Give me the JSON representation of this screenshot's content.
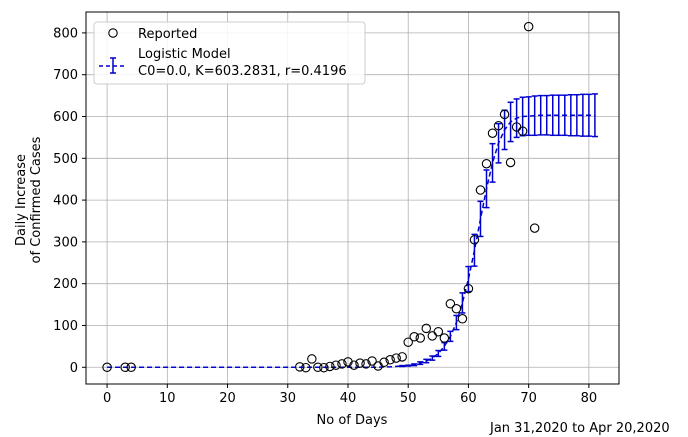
{
  "chart_data": {
    "type": "scatter",
    "xlabel": "No of Days",
    "ylabel_line1": "Daily Increase",
    "ylabel_line2": "of Confirmed Cases",
    "footnote": "Jan 31,2020 to Apr 20,2020",
    "xlim": [
      -3.5,
      85
    ],
    "ylim": [
      -40,
      850
    ],
    "xticks": [
      0,
      10,
      20,
      30,
      40,
      50,
      60,
      70,
      80
    ],
    "yticks": [
      0,
      100,
      200,
      300,
      400,
      500,
      600,
      700,
      800
    ],
    "grid": true,
    "legend_position": "top-left",
    "colors": {
      "reported": "#000000",
      "model": "#0000cc",
      "grid": "#b0b0b0"
    },
    "series": [
      {
        "name": "Reported",
        "style": "open-circle",
        "points": [
          [
            0,
            0
          ],
          [
            3,
            0
          ],
          [
            4,
            0
          ],
          [
            32,
            1
          ],
          [
            33,
            -1
          ],
          [
            34,
            20
          ],
          [
            35,
            0
          ],
          [
            36,
            -1
          ],
          [
            37,
            2
          ],
          [
            38,
            5
          ],
          [
            39,
            8
          ],
          [
            40,
            13
          ],
          [
            41,
            5
          ],
          [
            42,
            10
          ],
          [
            43,
            8
          ],
          [
            44,
            15
          ],
          [
            45,
            3
          ],
          [
            46,
            12
          ],
          [
            47,
            18
          ],
          [
            48,
            22
          ],
          [
            49,
            25
          ],
          [
            50,
            60
          ],
          [
            51,
            73
          ],
          [
            52,
            70
          ],
          [
            53,
            93
          ],
          [
            54,
            75
          ],
          [
            55,
            85
          ],
          [
            56,
            70
          ],
          [
            57,
            152
          ],
          [
            58,
            140
          ],
          [
            59,
            116
          ],
          [
            60,
            188
          ],
          [
            61,
            305
          ],
          [
            62,
            424
          ],
          [
            63,
            487
          ],
          [
            64,
            560
          ],
          [
            65,
            578
          ],
          [
            66,
            605
          ],
          [
            67,
            490
          ],
          [
            68,
            575
          ],
          [
            69,
            565
          ],
          [
            70,
            815
          ],
          [
            71,
            333
          ]
        ]
      },
      {
        "name": "Logistic Model",
        "subtitle": "C0=0.0, K=603.2831, r=0.4196",
        "style": "dashed-errorbar",
        "x": [
          0,
          1,
          2,
          3,
          4,
          5,
          6,
          7,
          8,
          9,
          10,
          11,
          12,
          13,
          14,
          15,
          16,
          17,
          18,
          19,
          20,
          21,
          22,
          23,
          24,
          25,
          26,
          27,
          28,
          29,
          30,
          31,
          32,
          33,
          34,
          35,
          36,
          37,
          38,
          39,
          40,
          41,
          42,
          43,
          44,
          45,
          46,
          47,
          48,
          49,
          50,
          51,
          52,
          53,
          54,
          55,
          56,
          57,
          58,
          59,
          60,
          61,
          62,
          63,
          64,
          65,
          66,
          67,
          68,
          69,
          70,
          71,
          72,
          73,
          74,
          75,
          76,
          77,
          78,
          79,
          80,
          81
        ],
        "y": [
          0,
          0,
          0,
          0,
          0,
          0,
          0,
          0,
          0,
          0,
          0,
          0,
          0,
          0,
          0,
          0,
          0,
          0,
          0,
          0,
          0,
          0,
          0,
          0,
          0,
          0,
          0,
          0,
          0,
          0,
          0,
          0,
          0,
          0,
          0,
          0,
          0,
          0,
          0,
          0,
          0,
          0,
          0,
          0,
          0,
          0,
          1,
          1,
          2,
          3,
          4,
          6,
          10,
          15,
          22,
          33,
          50,
          74,
          107,
          154,
          211,
          280,
          355,
          427,
          489,
          536,
          568,
          587,
          596,
          600,
          601,
          602,
          603,
          603,
          603,
          603,
          603,
          603,
          603,
          603,
          603,
          603
        ],
        "err": [
          0,
          0,
          0,
          0,
          0,
          0,
          0,
          0,
          0,
          0,
          0,
          0,
          0,
          0,
          0,
          0,
          0,
          0,
          0,
          0,
          0,
          0,
          0,
          0,
          0,
          0,
          0,
          0,
          0,
          0,
          0,
          0,
          0,
          0,
          0,
          0,
          0,
          0,
          0,
          0,
          0,
          0,
          0,
          0,
          0,
          0,
          0,
          0,
          0,
          1,
          1,
          2,
          3,
          4,
          5,
          7,
          9,
          12,
          17,
          24,
          30,
          38,
          42,
          45,
          46,
          47,
          47,
          47,
          46,
          46,
          46,
          47,
          47,
          47,
          48,
          48,
          48,
          49,
          49,
          50,
          50,
          51
        ]
      }
    ]
  }
}
